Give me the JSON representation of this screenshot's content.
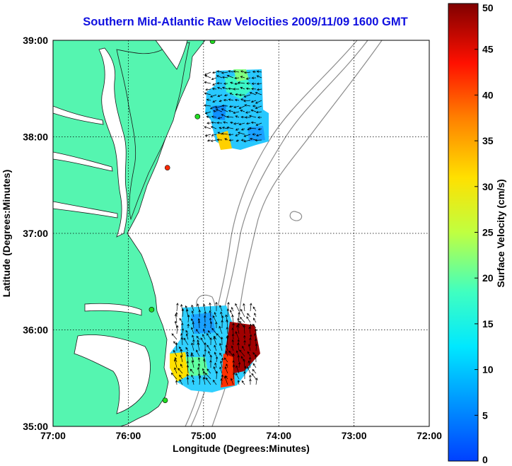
{
  "title": "Southern Mid-Atlantic Raw Velocities 2009/11/09 1600 GMT",
  "x_axis": {
    "label": "Longitude (Degrees:Minutes)",
    "ticks": [
      "77:00",
      "76:00",
      "75:00",
      "74:00",
      "73:00",
      "72:00"
    ]
  },
  "y_axis": {
    "label": "Latitude (Degrees:Minutes)",
    "ticks": [
      "39:00",
      "38:00",
      "37:00",
      "36:00",
      "35:00"
    ]
  },
  "colorbar": {
    "label": "Surface Velocity (cm/s)",
    "min": 0,
    "max": 50,
    "ticks": [
      "0",
      "5",
      "10",
      "15",
      "20",
      "25",
      "30",
      "35",
      "40",
      "45",
      "50"
    ]
  },
  "map_extent": {
    "lon_min": -77,
    "lon_max": -72,
    "lat_min": 35,
    "lat_max": 39
  },
  "colors": {
    "land": "#55f5b0",
    "title": "#1010e0",
    "grid": "#000000",
    "bathymetry": "#8c8c8c"
  },
  "stations": [
    {
      "lon": -74.88,
      "lat": 38.99,
      "status": "green"
    },
    {
      "lon": -75.08,
      "lat": 38.21,
      "status": "green"
    },
    {
      "lon": -75.48,
      "lat": 37.68,
      "status": "red"
    },
    {
      "lon": -75.69,
      "lat": 36.21,
      "status": "green"
    },
    {
      "lon": -75.51,
      "lat": 35.27,
      "status": "green"
    }
  ]
}
